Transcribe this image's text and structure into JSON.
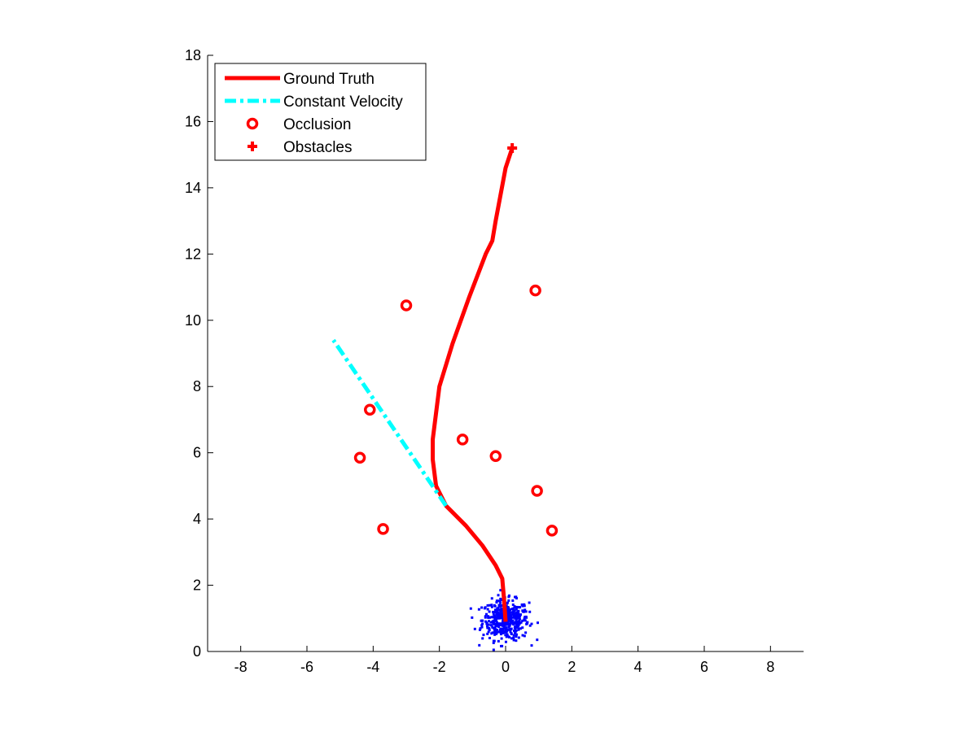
{
  "chart_data": {
    "type": "line",
    "title": "",
    "xlabel": "",
    "ylabel": "",
    "xlim": [
      -9,
      9
    ],
    "ylim": [
      0,
      18
    ],
    "xticks": [
      -8,
      -6,
      -4,
      -2,
      0,
      2,
      4,
      6,
      8
    ],
    "yticks": [
      0,
      2,
      4,
      6,
      8,
      10,
      12,
      14,
      16,
      18
    ],
    "xtick_labels": [
      "-8",
      "-6",
      "-4",
      "-2",
      "0",
      "2",
      "4",
      "6",
      "8"
    ],
    "ytick_labels": [
      "0",
      "2",
      "4",
      "6",
      "8",
      "10",
      "12",
      "14",
      "16",
      "18"
    ],
    "grid": false,
    "legend_position": "top-left",
    "series": [
      {
        "name": "Ground Truth",
        "color": "#ff0000",
        "style": "solid",
        "x": [
          0.0,
          -0.05,
          -0.1,
          -0.3,
          -0.7,
          -1.2,
          -1.8,
          -2.1,
          -2.2,
          -2.2,
          -2.0,
          -1.6,
          -1.1,
          -0.6,
          -0.4,
          -0.3,
          0.0,
          0.2
        ],
        "y": [
          0.9,
          1.6,
          2.2,
          2.6,
          3.2,
          3.8,
          4.4,
          5.0,
          5.8,
          6.4,
          8.0,
          9.3,
          10.7,
          12.0,
          12.4,
          13.0,
          14.6,
          15.2
        ]
      },
      {
        "name": "Constant Velocity",
        "color": "#00ffff",
        "style": "dash-dot",
        "x": [
          -1.8,
          -5.2
        ],
        "y": [
          4.4,
          9.4
        ]
      },
      {
        "name": "Occlusion",
        "color": "#ff0000",
        "marker": "o",
        "x": [
          -3.0,
          0.9,
          -4.1,
          -1.3,
          -0.3,
          -4.4,
          0.95,
          -3.7,
          1.4
        ],
        "y": [
          10.45,
          10.9,
          7.3,
          6.4,
          5.9,
          5.85,
          4.85,
          3.7,
          3.65
        ]
      },
      {
        "name": "Obstacles",
        "color": "#ff0000",
        "marker": "+",
        "x": [
          0.2
        ],
        "y": [
          15.2
        ]
      }
    ],
    "particle_cloud": {
      "color": "#0000ff",
      "center": [
        0.0,
        0.95
      ],
      "spread": [
        0.35,
        0.3
      ],
      "count": 450
    }
  }
}
